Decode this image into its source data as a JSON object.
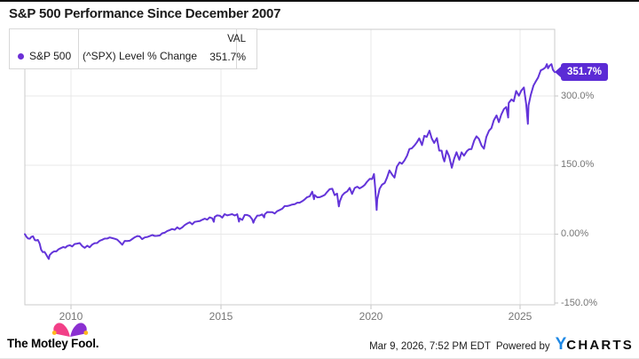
{
  "title": "S&P 500 Performance Since December 2007",
  "legend": {
    "series_name": "S&P 500",
    "series_metric": "(^SPX) Level % Change",
    "val_header": "VAL",
    "value": "351.7%"
  },
  "chart_data": {
    "type": "line",
    "title": "S&P 500 Performance Since December 2007",
    "xlabel": "",
    "ylabel": "",
    "x_range": [
      "2007-12",
      "2026-03"
    ],
    "ylim": [
      -153,
      445
    ],
    "grid": true,
    "legend_position": "top-left",
    "end_label": "351.7%",
    "line_color": "#6334d9",
    "x_ticks": [
      {
        "year": 2010,
        "label": "2010"
      },
      {
        "year": 2015,
        "label": "2015"
      },
      {
        "year": 2020,
        "label": "2020"
      },
      {
        "year": 2025,
        "label": "2025"
      }
    ],
    "y_ticks": [
      {
        "value": 300,
        "label": "300.0%"
      },
      {
        "value": 150,
        "label": "150.0%"
      },
      {
        "value": 0,
        "label": "0.00%"
      },
      {
        "value": -150,
        "label": "-150.0%"
      }
    ],
    "series": [
      {
        "name": "S&P 500 (^SPX) Level % Change",
        "color": "#6334d9",
        "points": [
          [
            2007.95,
            0
          ],
          [
            2008.04,
            -6.1
          ],
          [
            2008.12,
            -9.4
          ],
          [
            2008.21,
            -9.9
          ],
          [
            2008.29,
            -5.6
          ],
          [
            2008.37,
            -4.7
          ],
          [
            2008.46,
            -12.8
          ],
          [
            2008.54,
            -13.7
          ],
          [
            2008.62,
            -12.6
          ],
          [
            2008.71,
            -20.6
          ],
          [
            2008.79,
            -34
          ],
          [
            2008.87,
            -39
          ],
          [
            2008.96,
            -38.5
          ],
          [
            2009.04,
            -43.7
          ],
          [
            2009.12,
            -49.9
          ],
          [
            2009.18,
            -53.9
          ],
          [
            2009.21,
            -45.7
          ],
          [
            2009.29,
            -40.6
          ],
          [
            2009.37,
            -37.4
          ],
          [
            2009.46,
            -37.4
          ],
          [
            2009.54,
            -32.8
          ],
          [
            2009.62,
            -30.5
          ],
          [
            2009.71,
            -28
          ],
          [
            2009.79,
            -29.4
          ],
          [
            2009.87,
            -25.4
          ],
          [
            2009.96,
            -24.1
          ],
          [
            2010.04,
            -26.6
          ],
          [
            2010.12,
            -21.5
          ],
          [
            2010.21,
            -20.4
          ],
          [
            2010.29,
            -19.2
          ],
          [
            2010.37,
            -25.7
          ],
          [
            2010.46,
            -29.8
          ],
          [
            2010.54,
            -25.1
          ],
          [
            2010.62,
            -28.5
          ],
          [
            2010.71,
            -22.3
          ],
          [
            2010.79,
            -19.5
          ],
          [
            2010.87,
            -19.3
          ],
          [
            2010.96,
            -14.3
          ],
          [
            2011.04,
            -12.1
          ],
          [
            2011.12,
            -9.6
          ],
          [
            2011.21,
            -9.5
          ],
          [
            2011.29,
            -7.1
          ],
          [
            2011.37,
            -8.4
          ],
          [
            2011.46,
            -10
          ],
          [
            2011.54,
            -12
          ],
          [
            2011.62,
            -17
          ],
          [
            2011.71,
            -23
          ],
          [
            2011.79,
            -14.7
          ],
          [
            2011.87,
            -15.1
          ],
          [
            2011.96,
            -14.3
          ],
          [
            2012.04,
            -10.6
          ],
          [
            2012.12,
            -7
          ],
          [
            2012.21,
            -4.1
          ],
          [
            2012.29,
            -4.8
          ],
          [
            2012.37,
            -10.8
          ],
          [
            2012.46,
            -7.2
          ],
          [
            2012.54,
            -6.1
          ],
          [
            2012.62,
            -4.2
          ],
          [
            2012.71,
            -1.9
          ],
          [
            2012.79,
            -3.8
          ],
          [
            2012.87,
            -3.6
          ],
          [
            2012.96,
            -2.9
          ],
          [
            2013.04,
            2
          ],
          [
            2013.12,
            3.1
          ],
          [
            2013.21,
            6.9
          ],
          [
            2013.29,
            8.8
          ],
          [
            2013.37,
            11.1
          ],
          [
            2013.46,
            9.4
          ],
          [
            2013.54,
            14.9
          ],
          [
            2013.62,
            11.2
          ],
          [
            2013.71,
            14.6
          ],
          [
            2013.79,
            19.7
          ],
          [
            2013.87,
            23
          ],
          [
            2013.96,
            25.9
          ],
          [
            2014.04,
            21.4
          ],
          [
            2014.12,
            26.7
          ],
          [
            2014.21,
            27.5
          ],
          [
            2014.29,
            28.3
          ],
          [
            2014.37,
            31
          ],
          [
            2014.46,
            33.5
          ],
          [
            2014.54,
            31.5
          ],
          [
            2014.62,
            36.4
          ],
          [
            2014.71,
            34.3
          ],
          [
            2014.76,
            26.8
          ],
          [
            2014.79,
            37.4
          ],
          [
            2014.87,
            40.8
          ],
          [
            2014.96,
            40.2
          ],
          [
            2015.04,
            35.9
          ],
          [
            2015.12,
            43.4
          ],
          [
            2015.21,
            40.8
          ],
          [
            2015.29,
            42.1
          ],
          [
            2015.37,
            43.5
          ],
          [
            2015.46,
            40.5
          ],
          [
            2015.54,
            43.3
          ],
          [
            2015.6,
            27.2
          ],
          [
            2015.62,
            34.3
          ],
          [
            2015.71,
            30.8
          ],
          [
            2015.79,
            41.6
          ],
          [
            2015.87,
            41.7
          ],
          [
            2015.96,
            39.2
          ],
          [
            2016.04,
            32.1
          ],
          [
            2016.08,
            24.6
          ],
          [
            2016.12,
            31.6
          ],
          [
            2016.21,
            40.3
          ],
          [
            2016.29,
            40.6
          ],
          [
            2016.37,
            42.9
          ],
          [
            2016.44,
            36.2
          ],
          [
            2016.46,
            43
          ],
          [
            2016.54,
            48.1
          ],
          [
            2016.62,
            47.9
          ],
          [
            2016.71,
            47.7
          ],
          [
            2016.79,
            44.8
          ],
          [
            2016.87,
            49.8
          ],
          [
            2016.96,
            52.5
          ],
          [
            2017.04,
            55.2
          ],
          [
            2017.12,
            61
          ],
          [
            2017.21,
            60.9
          ],
          [
            2017.29,
            62.4
          ],
          [
            2017.37,
            64.3
          ],
          [
            2017.46,
            65
          ],
          [
            2017.54,
            68.2
          ],
          [
            2017.62,
            68.3
          ],
          [
            2017.71,
            71.6
          ],
          [
            2017.79,
            75.4
          ],
          [
            2017.87,
            80.2
          ],
          [
            2017.96,
            82.1
          ],
          [
            2018.04,
            92.3
          ],
          [
            2018.1,
            75.8
          ],
          [
            2018.12,
            84.8
          ],
          [
            2018.21,
            79.9
          ],
          [
            2018.29,
            80.3
          ],
          [
            2018.37,
            82.4
          ],
          [
            2018.46,
            85.1
          ],
          [
            2018.54,
            91.8
          ],
          [
            2018.62,
            97.7
          ],
          [
            2018.71,
            98.5
          ],
          [
            2018.79,
            84.7
          ],
          [
            2018.87,
            88
          ],
          [
            2018.93,
            60.1
          ],
          [
            2018.96,
            70.7
          ],
          [
            2019.04,
            84.2
          ],
          [
            2019.12,
            89.6
          ],
          [
            2019.21,
            93
          ],
          [
            2019.29,
            100.6
          ],
          [
            2019.37,
            87.4
          ],
          [
            2019.46,
            100.4
          ],
          [
            2019.54,
            103
          ],
          [
            2019.62,
            99.3
          ],
          [
            2019.71,
            102.7
          ],
          [
            2019.79,
            106.9
          ],
          [
            2019.87,
            113.9
          ],
          [
            2019.96,
            120
          ],
          [
            2020.04,
            119.7
          ],
          [
            2020.1,
            130.6
          ],
          [
            2020.14,
            101.2
          ],
          [
            2020.19,
            52.4
          ],
          [
            2020.21,
            76.1
          ],
          [
            2020.29,
            98.3
          ],
          [
            2020.37,
            107.3
          ],
          [
            2020.46,
            111.1
          ],
          [
            2020.54,
            122.8
          ],
          [
            2020.62,
            138.4
          ],
          [
            2020.71,
            129
          ],
          [
            2020.79,
            122.7
          ],
          [
            2020.87,
            146.7
          ],
          [
            2020.96,
            155.8
          ],
          [
            2021.04,
            153
          ],
          [
            2021.12,
            159.6
          ],
          [
            2021.21,
            170.6
          ],
          [
            2021.29,
            184.8
          ],
          [
            2021.37,
            186.4
          ],
          [
            2021.46,
            192.7
          ],
          [
            2021.54,
            199.3
          ],
          [
            2021.62,
            208
          ],
          [
            2021.71,
            193.4
          ],
          [
            2021.79,
            213.6
          ],
          [
            2021.87,
            211
          ],
          [
            2021.96,
            224.6
          ],
          [
            2022.04,
            207.6
          ],
          [
            2022.12,
            197.9
          ],
          [
            2022.21,
            208.5
          ],
          [
            2022.29,
            181.4
          ],
          [
            2022.37,
            181.4
          ],
          [
            2022.42,
            165.7
          ],
          [
            2022.46,
            157.8
          ],
          [
            2022.54,
            181.3
          ],
          [
            2022.62,
            169.4
          ],
          [
            2022.71,
            144.2
          ],
          [
            2022.79,
            163.7
          ],
          [
            2022.87,
            177.9
          ],
          [
            2022.96,
            161.5
          ],
          [
            2023.04,
            177.7
          ],
          [
            2023.12,
            170.4
          ],
          [
            2023.21,
            179.9
          ],
          [
            2023.29,
            184.3
          ],
          [
            2023.37,
            184.7
          ],
          [
            2023.46,
            203.1
          ],
          [
            2023.54,
            212.5
          ],
          [
            2023.62,
            207
          ],
          [
            2023.71,
            192
          ],
          [
            2023.79,
            185.6
          ],
          [
            2023.87,
            211.1
          ],
          [
            2023.96,
            224.9
          ],
          [
            2024.04,
            230.1
          ],
          [
            2024.12,
            247.1
          ],
          [
            2024.21,
            257.8
          ],
          [
            2024.29,
            243
          ],
          [
            2024.37,
            259.5
          ],
          [
            2024.46,
            271.9
          ],
          [
            2024.54,
            276.1
          ],
          [
            2024.6,
            253.2
          ],
          [
            2024.62,
            284.7
          ],
          [
            2024.71,
            292.4
          ],
          [
            2024.79,
            288.6
          ],
          [
            2024.87,
            310.8
          ],
          [
            2024.96,
            300.6
          ],
          [
            2025.04,
            311.4
          ],
          [
            2025.13,
            318.5
          ],
          [
            2025.16,
            305.6
          ],
          [
            2025.21,
            282.2
          ],
          [
            2025.27,
            239.4
          ],
          [
            2025.29,
            279.3
          ],
          [
            2025.37,
            302.6
          ],
          [
            2025.46,
            322.6
          ],
          [
            2025.54,
            331.7
          ],
          [
            2025.62,
            340
          ],
          [
            2025.71,
            355.5
          ],
          [
            2025.79,
            358
          ],
          [
            2025.87,
            362
          ],
          [
            2025.92,
            369
          ],
          [
            2025.96,
            360
          ],
          [
            2026.02,
            366
          ],
          [
            2026.08,
            369
          ],
          [
            2026.13,
            357
          ],
          [
            2026.19,
            351.7
          ]
        ]
      }
    ]
  },
  "footer": {
    "brand": "The Motley Fool.",
    "timestamp": "Mar 9, 2026, 7:52 PM EDT",
    "powered_by": "Powered by",
    "ycharts_y": "Y",
    "ycharts_rest": "CHARTS"
  },
  "colors": {
    "line": "#6334d9",
    "badge": "#5b2bd5",
    "ycharts_blue": "#1e88e5",
    "hat_pink": "#f23f87",
    "hat_purple": "#8b30d1",
    "hat_gold": "#ffb81c"
  }
}
